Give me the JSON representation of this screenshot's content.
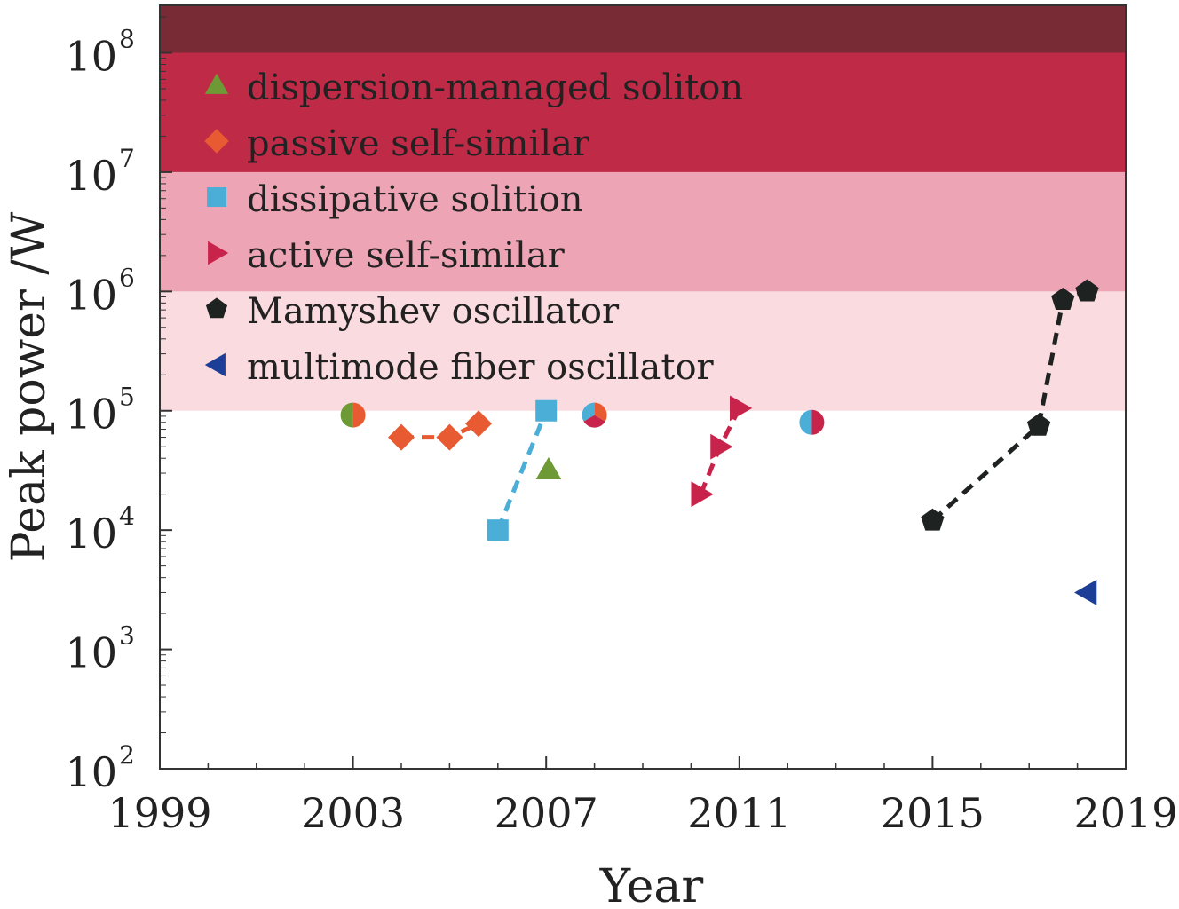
{
  "chart_data": {
    "type": "scatter",
    "xlabel": "Year",
    "ylabel": "Peak power /W",
    "xlim": [
      1999,
      2019
    ],
    "ylim": [
      100,
      250000000
    ],
    "yscale": "log",
    "x_ticks": [
      "1999",
      "2003",
      "2007",
      "2011",
      "2015",
      "2019"
    ],
    "y_ticks": [
      {
        "base": "10",
        "exp": "2",
        "value": 100
      },
      {
        "base": "10",
        "exp": "3",
        "value": 1000
      },
      {
        "base": "10",
        "exp": "4",
        "value": 10000
      },
      {
        "base": "10",
        "exp": "5",
        "value": 100000
      },
      {
        "base": "10",
        "exp": "6",
        "value": 1000000
      },
      {
        "base": "10",
        "exp": "7",
        "value": 10000000
      },
      {
        "base": "10",
        "exp": "8",
        "value": 100000000
      }
    ],
    "bands": [
      {
        "y0": 100000,
        "y1": 1000000,
        "color": "#fadbe0"
      },
      {
        "y0": 1000000,
        "y1": 10000000,
        "color": "#eda4b4"
      },
      {
        "y0": 10000000,
        "y1": 100000000,
        "color": "#bf2a47"
      },
      {
        "y0": 100000000,
        "y1": 250000000,
        "color": "#782a35"
      }
    ],
    "grid": false,
    "legend_position": "top-left",
    "series": [
      {
        "name": "dispersion-managed soliton",
        "marker": "triangle-up",
        "color": "#6e9a35",
        "points": [
          [
            2007.05,
            32000
          ]
        ]
      },
      {
        "name": "passive self-similar",
        "marker": "diamond",
        "color": "#e85a32",
        "points": [
          [
            2004,
            60000
          ],
          [
            2005,
            60000
          ],
          [
            2005.6,
            78000
          ]
        ],
        "line": true
      },
      {
        "name": "dissipative solition",
        "marker": "square",
        "color": "#4aaed6",
        "points": [
          [
            2006,
            10000
          ],
          [
            2007,
            100000
          ]
        ],
        "line": true
      },
      {
        "name": "active self-similar",
        "marker": "triangle-right",
        "color": "#c8234a",
        "points": [
          [
            2010.2,
            20000
          ],
          [
            2010.6,
            50000
          ],
          [
            2011,
            105000
          ]
        ],
        "line": true
      },
      {
        "name": "Mamyshev oscillator",
        "marker": "pentagon",
        "color": "#1e2220",
        "points": [
          [
            2015,
            12000
          ],
          [
            2017.2,
            75000
          ],
          [
            2017.7,
            850000
          ],
          [
            2018.2,
            1000000
          ]
        ],
        "line": true
      },
      {
        "name": "multimode fiber oscillator",
        "marker": "triangle-left",
        "color": "#1c3e96",
        "points": [
          [
            2018.2,
            3000
          ]
        ]
      }
    ],
    "composite_markers": [
      {
        "x": 2003,
        "y": 92000,
        "colors": [
          "#6e9a35",
          "#e85a32"
        ]
      },
      {
        "x": 2008,
        "y": 92000,
        "colors": [
          "#e85a32",
          "#c8234a",
          "#4aaed6"
        ]
      },
      {
        "x": 2012.5,
        "y": 80000,
        "colors": [
          "#4aaed6",
          "#c8234a"
        ]
      }
    ]
  }
}
